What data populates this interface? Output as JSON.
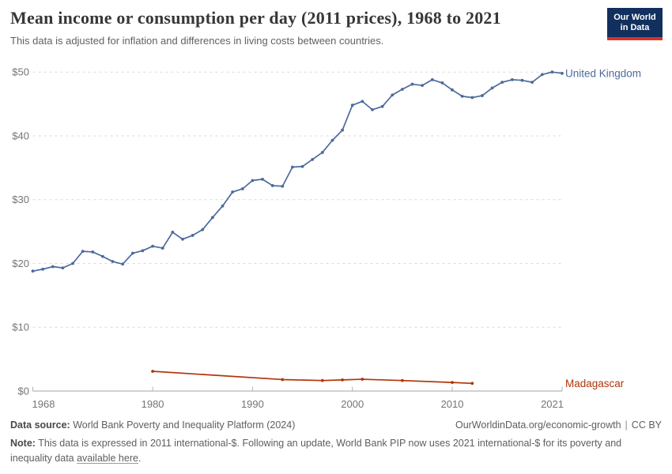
{
  "header": {
    "title": "Mean income or consumption per day (2011 prices), 1968 to 2021",
    "subtitle": "This data is adjusted for inflation and differences in living costs between countries.",
    "logo": {
      "line1": "Our World",
      "line2": "in Data",
      "background": "#12305E",
      "accent_bar": "#D6332C"
    }
  },
  "chart_data": {
    "type": "line",
    "title": "Mean income or consumption per day (2011 prices), 1968 to 2021",
    "xlabel": "",
    "ylabel": "",
    "xlim": [
      1968,
      2021
    ],
    "ylim": [
      0,
      50
    ],
    "x_ticks": [
      1968,
      1980,
      1990,
      2000,
      2010,
      2021
    ],
    "x_tick_labels": [
      "1968",
      "1980",
      "1990",
      "2000",
      "2010",
      "2021"
    ],
    "y_ticks": [
      0,
      10,
      20,
      30,
      40,
      50
    ],
    "y_tick_labels": [
      "$0",
      "$10",
      "$20",
      "$30",
      "$40",
      "$50"
    ],
    "grid": "horizontal-dashed",
    "legend": "end-of-line-labels",
    "axis_color": "#a6a6a6",
    "grid_color": "#d9d9d9",
    "tick_label_color": "#757575",
    "series": [
      {
        "name": "United Kingdom",
        "color": "#4C6A9C",
        "x": [
          1968,
          1969,
          1970,
          1971,
          1972,
          1973,
          1974,
          1975,
          1976,
          1977,
          1978,
          1979,
          1980,
          1981,
          1982,
          1983,
          1984,
          1985,
          1986,
          1987,
          1988,
          1989,
          1990,
          1991,
          1992,
          1993,
          1994,
          1995,
          1996,
          1997,
          1998,
          1999,
          2000,
          2001,
          2002,
          2003,
          2004,
          2005,
          2006,
          2007,
          2008,
          2009,
          2010,
          2011,
          2012,
          2013,
          2014,
          2015,
          2016,
          2017,
          2018,
          2019,
          2020,
          2021
        ],
        "values": [
          18.8,
          19.1,
          19.5,
          19.3,
          20.0,
          21.9,
          21.8,
          21.1,
          20.3,
          19.9,
          21.6,
          22.0,
          22.7,
          22.4,
          24.9,
          23.8,
          24.4,
          25.3,
          27.2,
          29.0,
          31.2,
          31.7,
          33.0,
          33.2,
          32.2,
          32.1,
          35.1,
          35.2,
          36.3,
          37.4,
          39.3,
          40.9,
          44.8,
          45.4,
          44.1,
          44.6,
          46.4,
          47.3,
          48.1,
          47.9,
          48.8,
          48.3,
          47.2,
          46.2,
          46.0,
          46.3,
          47.5,
          48.4,
          48.8,
          48.7,
          48.4,
          49.6,
          50.0,
          49.8
        ]
      },
      {
        "name": "Madagascar",
        "color": "#B13507",
        "x": [
          1980,
          1993,
          1997,
          1999,
          2001,
          2005,
          2010,
          2012
        ],
        "values": [
          3.1,
          1.8,
          1.65,
          1.75,
          1.85,
          1.65,
          1.35,
          1.2
        ]
      }
    ]
  },
  "footer": {
    "data_source_label": "Data source:",
    "data_source_value": "World Bank Poverty and Inequality Platform (2024)",
    "attribution_url": "OurWorldinData.org/economic-growth",
    "attribution_separator": "|",
    "license": "CC BY",
    "note_label": "Note:",
    "note_text_1": "This data is expressed in 2011 international-$. Following an update, World Bank PIP now uses 2021 international-$ for its poverty and inequality data",
    "note_link_text": "available here",
    "note_text_2": "."
  }
}
